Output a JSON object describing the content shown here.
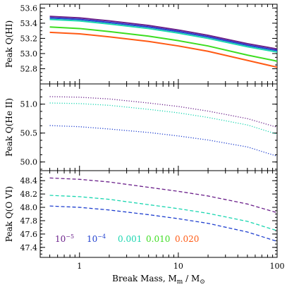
{
  "chart_data": {
    "type": "line",
    "xlabel": "Break Mass, M_m / M_⊙",
    "xlabel_parts": {
      "main": "Break Mass, M",
      "sub1": "m",
      "mid": " / M",
      "sub2": "⊙"
    },
    "xscale": "log",
    "xlim": [
      0.4,
      100
    ],
    "x_ticks": [
      1,
      10,
      100
    ],
    "x_tick_labels": [
      "1",
      "10",
      "100"
    ],
    "x": [
      0.5,
      1,
      2,
      5,
      10,
      20,
      50,
      100
    ],
    "colors": {
      "1e-5": "#6a1f8a",
      "1e-4": "#1f3fcf",
      "0.001": "#19d6b0",
      "0.010": "#3ddd20",
      "0.020": "#ff5a14"
    },
    "legend": [
      {
        "key": "1e-5",
        "base": "10",
        "exp": "−5"
      },
      {
        "key": "1e-4",
        "base": "10",
        "exp": "−4"
      },
      {
        "key": "0.001",
        "label": "0.001"
      },
      {
        "key": "0.010",
        "label": "0.010"
      },
      {
        "key": "0.020",
        "label": "0.020"
      }
    ],
    "panels": [
      {
        "ylabel": "Peak Q(HI)",
        "ylim": [
          52.6,
          53.65
        ],
        "y_ticks": [
          52.8,
          53.0,
          53.2,
          53.4,
          53.6
        ],
        "y_tick_labels": [
          "52.8",
          "53.0",
          "53.2",
          "53.4",
          "53.6"
        ],
        "linestyle": "solid",
        "series": [
          {
            "key": "1e-5",
            "values": [
              53.49,
              53.47,
              53.43,
              53.37,
              53.31,
              53.24,
              53.13,
              53.06
            ]
          },
          {
            "key": "1e-4",
            "values": [
              53.47,
              53.45,
              53.41,
              53.35,
              53.29,
              53.22,
              53.11,
              53.04
            ]
          },
          {
            "key": "0.001",
            "values": [
              53.45,
              53.43,
              53.39,
              53.33,
              53.27,
              53.2,
              53.09,
              53.02
            ]
          },
          {
            "key": "0.010",
            "values": [
              53.35,
              53.33,
              53.29,
              53.23,
              53.17,
              53.1,
              52.98,
              52.9
            ]
          },
          {
            "key": "0.020",
            "values": [
              53.28,
              53.26,
              53.22,
              53.16,
              53.1,
              53.03,
              52.91,
              52.82
            ]
          }
        ]
      },
      {
        "ylabel": "Peak Q(He II)",
        "ylim": [
          49.85,
          51.35
        ],
        "y_ticks": [
          50.0,
          50.5,
          51.0
        ],
        "y_tick_labels": [
          "50.0",
          "50.5",
          "51.0"
        ],
        "linestyle": "dotted",
        "series": [
          {
            "key": "1e-5",
            "values": [
              51.13,
              51.12,
              51.09,
              51.02,
              50.96,
              50.88,
              50.75,
              50.6
            ]
          },
          {
            "key": "0.001",
            "values": [
              51.02,
              51.01,
              50.98,
              50.91,
              50.85,
              50.77,
              50.64,
              50.48
            ]
          },
          {
            "key": "1e-4",
            "values": [
              50.63,
              50.61,
              50.57,
              50.51,
              50.45,
              50.38,
              50.26,
              50.1
            ]
          }
        ]
      },
      {
        "ylabel": "Peak Q(O VI)",
        "ylim": [
          47.25,
          48.55
        ],
        "y_ticks": [
          47.4,
          47.6,
          47.8,
          48.0,
          48.2,
          48.4
        ],
        "y_tick_labels": [
          "47.4",
          "47.6",
          "47.8",
          "48.0",
          "48.2",
          "48.4"
        ],
        "linestyle": "dashed",
        "series": [
          {
            "key": "1e-5",
            "values": [
              48.44,
              48.42,
              48.38,
              48.3,
              48.24,
              48.17,
              48.05,
              47.92
            ]
          },
          {
            "key": "0.001",
            "values": [
              48.18,
              48.16,
              48.12,
              48.04,
              47.98,
              47.91,
              47.79,
              47.65
            ]
          },
          {
            "key": "1e-4",
            "values": [
              48.02,
              48.0,
              47.96,
              47.89,
              47.83,
              47.76,
              47.63,
              47.49
            ]
          }
        ]
      }
    ]
  }
}
